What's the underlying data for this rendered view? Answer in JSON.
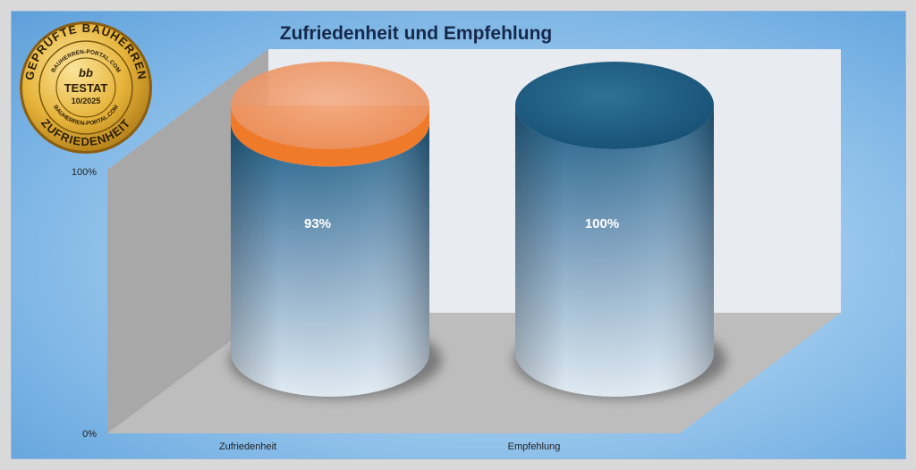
{
  "chart_data": {
    "type": "bar",
    "style": "3d-cylinder",
    "title": "Zufriedenheit und Empfehlung",
    "categories": [
      "Zufriedenheit",
      "Empfehlung"
    ],
    "values": [
      93,
      100
    ],
    "value_labels": [
      "93%",
      "100%"
    ],
    "yticks": [
      "0%",
      "100%"
    ],
    "ylim": [
      0,
      100
    ],
    "grid": false,
    "colors": {
      "bar": "#1f5f86",
      "bar_light": "#dce8f2",
      "remainder_cap": "#ef7a2a",
      "back_wall": "#e8ebef",
      "side_wall": "#a8a8a8",
      "floor": "#bdbdbd",
      "background": "#8cc3ec"
    }
  },
  "seal": {
    "top_text": "GEPRÜFTE BAUHERREN",
    "bottom_text": "ZUFRIEDENHEIT",
    "ring_text": "BAUHERREN-PORTAL.COM",
    "logo": "bb",
    "badge": "TESTAT",
    "date": "10/2025",
    "colors": {
      "gold": "#e6b43a",
      "gold_dark": "#b07e16",
      "ink": "#2a1d05"
    }
  }
}
